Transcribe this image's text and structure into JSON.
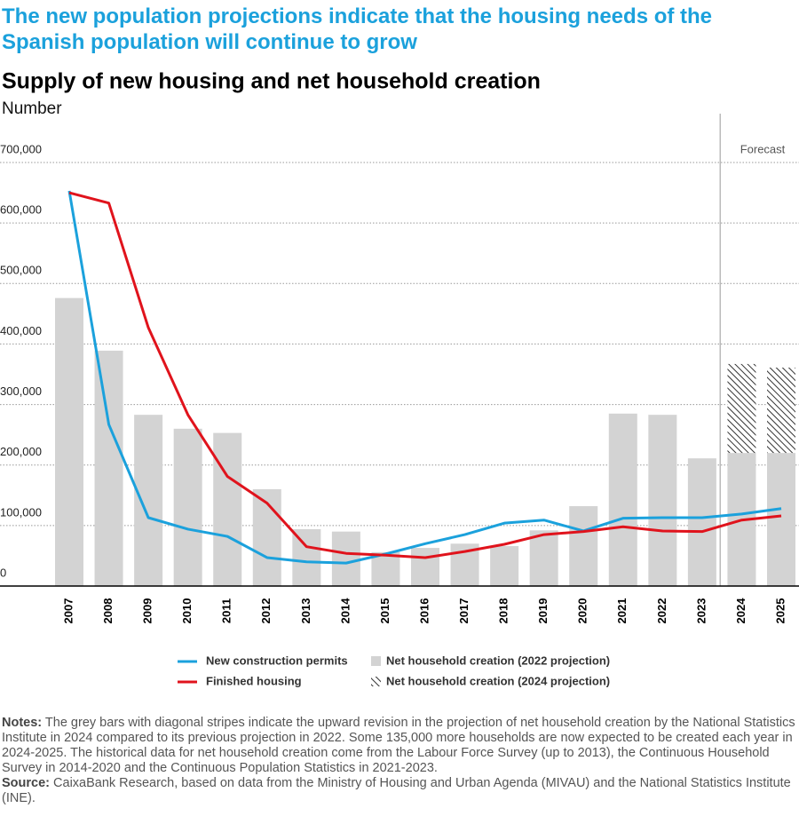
{
  "chart_data": {
    "type": "bar-line",
    "headline": "The new population projections indicate that the housing needs of the Spanish population will continue to grow",
    "title": "Supply of new housing and net household creation",
    "subtitle": "Number",
    "forecast_label": "Forecast",
    "categories": [
      "2007",
      "2008",
      "2009",
      "2010",
      "2011",
      "2012",
      "2013",
      "2014",
      "2015",
      "2016",
      "2017",
      "2018",
      "2019",
      "2020",
      "2021",
      "2022",
      "2023",
      "2024",
      "2025"
    ],
    "ylim": [
      0,
      700000
    ],
    "yticks": [
      0,
      {
        "value": 100000,
        "label": "100,000"
      },
      {
        "value": 200000,
        "label": "200,000"
      },
      {
        "value": 300000,
        "label": "300,000"
      },
      {
        "value": 400000,
        "label": "400,000"
      },
      {
        "value": 500000,
        "label": "500,000"
      },
      {
        "value": 600000,
        "label": "600,000"
      },
      {
        "value": 700000,
        "label": "700,000"
      }
    ],
    "grid": true,
    "series": [
      {
        "name": "New construction permits",
        "type": "line",
        "color": "#1ba1dc",
        "values": [
          653000,
          267000,
          113000,
          94000,
          82000,
          47000,
          40000,
          38000,
          53000,
          70000,
          85000,
          104000,
          109000,
          91000,
          112000,
          113000,
          113000,
          119000,
          128000
        ]
      },
      {
        "name": "Finished housing",
        "type": "line",
        "color": "#e0131c",
        "values": [
          650000,
          633000,
          427000,
          283000,
          181000,
          137000,
          65000,
          54000,
          51000,
          47000,
          57000,
          69000,
          85000,
          90000,
          98000,
          91000,
          90000,
          109000,
          116000
        ]
      },
      {
        "name": "Net household creation (2022 projection)",
        "type": "bar",
        "color": "#d3d3d3",
        "values": [
          476000,
          389000,
          283000,
          260000,
          253000,
          160000,
          94000,
          90000,
          56000,
          63000,
          70000,
          66000,
          92000,
          132000,
          285000,
          283000,
          211000,
          220000,
          220000
        ]
      },
      {
        "name": "Net household creation (2024 projection)",
        "type": "bar",
        "color": "#333333",
        "hatch": true,
        "values": [
          null,
          null,
          null,
          null,
          null,
          null,
          null,
          null,
          null,
          null,
          null,
          null,
          null,
          null,
          null,
          null,
          null,
          147000,
          141000
        ]
      }
    ],
    "notes_label": "Notes:",
    "notes": "The grey bars with diagonal stripes indicate the upward revision in the projection of net household creation by the National Statistics Institute in 2024 compared to its previous projection in 2022. Some 135,000 more households are now expected to be created each year in 2024-2025. The historical data for net household creation come from the Labour Force Survey (up to 2013), the Continuous Household Survey in 2014-2020 and the Continuous Population Statistics in 2021-2023.",
    "source_label": "Source:",
    "source": "CaixaBank Research, based on data from the Ministry of Housing and Urban Agenda (MIVAU) and the National Statistics Institute (INE)."
  }
}
